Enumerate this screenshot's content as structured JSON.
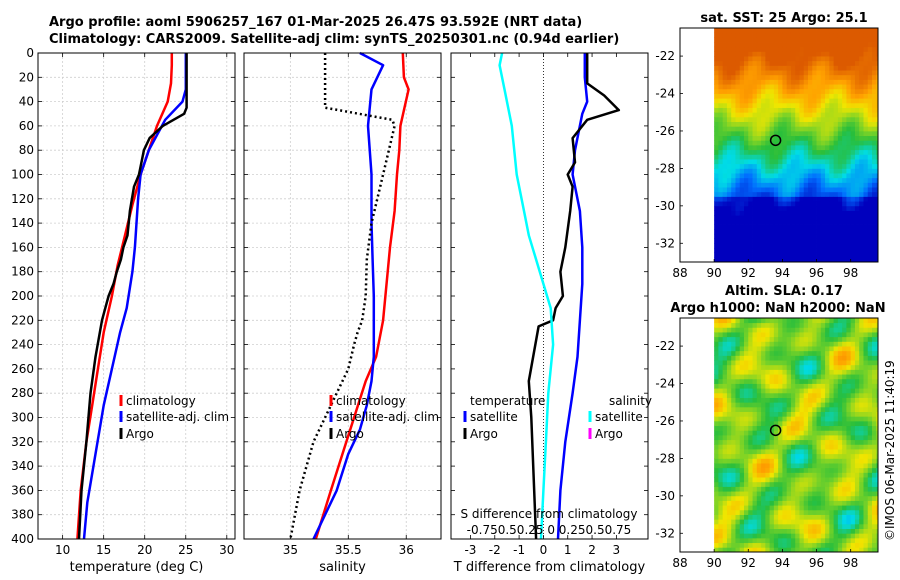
{
  "header": {
    "line1": "Argo profile: aoml 5906257_167 01-Mar-2025 26.47S 93.592E (NRT data)",
    "line2": "Climatology: CARS2009. Satellite-adj clim: synTS_20250301.nc (0.94d earlier)"
  },
  "watermark": "©IMOS 06-Mar-2025 11:40:19",
  "colors": {
    "climatology": "#ff0000",
    "satellite": "#0000ff",
    "argo": "#000000",
    "sat_salinity": "#00ffff",
    "argo_salinity": "#ff00ff"
  },
  "chart_data": [
    {
      "id": "temperature",
      "type": "line",
      "xlabel": "temperature (deg C)",
      "ylabel": "",
      "xlim": [
        7,
        31
      ],
      "ylim": [
        400,
        0
      ],
      "xticks": [
        10,
        15,
        20,
        25,
        30
      ],
      "yticks": [
        0,
        20,
        40,
        60,
        80,
        100,
        120,
        140,
        160,
        180,
        200,
        220,
        240,
        260,
        280,
        300,
        320,
        340,
        360,
        380,
        400
      ],
      "grid": true,
      "legend": [
        "climatology",
        "satellite-adj. clim",
        "Argo"
      ],
      "series": [
        {
          "name": "climatology",
          "color": "#ff0000",
          "x": [
            23.3,
            23.3,
            23.2,
            22.8,
            21.5,
            20.5,
            19.5,
            18.5,
            17.6,
            16.7,
            16,
            15,
            14.3,
            13.6,
            12.9,
            12.2,
            11.8
          ],
          "y": [
            0,
            10,
            25,
            40,
            60,
            80,
            100,
            125,
            150,
            175,
            200,
            230,
            260,
            290,
            320,
            360,
            400
          ]
        },
        {
          "name": "satellite-adj. clim",
          "color": "#0000ff",
          "x": [
            25,
            25,
            25,
            24.6,
            22.5,
            20.5,
            19.5,
            19.2,
            19,
            18.8,
            18.5,
            17.8,
            17,
            16,
            15,
            14,
            13,
            12.6
          ],
          "y": [
            0,
            10,
            30,
            40,
            55,
            80,
            100,
            120,
            140,
            160,
            180,
            210,
            230,
            260,
            290,
            330,
            370,
            400
          ]
        },
        {
          "name": "Argo",
          "color": "#000000",
          "x": [
            25.1,
            25.1,
            25.1,
            25.1,
            24.8,
            22.2,
            20.6,
            19.9,
            19.3,
            18.7,
            18.2,
            17.9,
            17.4,
            17.1,
            16.6,
            16.2,
            15.6,
            15.2,
            14.8,
            14,
            13.4,
            12.9,
            12.3,
            12
          ],
          "y": [
            0,
            10,
            30,
            45,
            50,
            60,
            70,
            80,
            100,
            110,
            130,
            150,
            160,
            170,
            180,
            190,
            200,
            210,
            220,
            250,
            280,
            320,
            360,
            400
          ]
        }
      ]
    },
    {
      "id": "salinity",
      "type": "line",
      "xlabel": "salinity",
      "ylabel": "",
      "xlim": [
        34.6,
        36.3
      ],
      "ylim": [
        400,
        0
      ],
      "xticks": [
        35,
        35.5,
        36
      ],
      "yticks": [
        0,
        20,
        40,
        60,
        80,
        100,
        120,
        140,
        160,
        180,
        200,
        220,
        240,
        260,
        280,
        300,
        320,
        340,
        360,
        380,
        400
      ],
      "grid": true,
      "legend": [
        "climatology",
        "satellite-adj. clim",
        "Argo"
      ],
      "series": [
        {
          "name": "climatology",
          "color": "#ff0000",
          "x": [
            35.97,
            35.98,
            36.02,
            35.95,
            35.94,
            35.92,
            35.9,
            35.86,
            35.84,
            35.82,
            35.8,
            35.74,
            35.65,
            35.55,
            35.45,
            35.35,
            35.22
          ],
          "y": [
            0,
            20,
            30,
            60,
            80,
            100,
            130,
            160,
            180,
            200,
            220,
            250,
            270,
            300,
            330,
            360,
            400
          ]
        },
        {
          "name": "satellite-adj. clim",
          "color": "#0000ff",
          "x": [
            35.6,
            35.8,
            35.7,
            35.67,
            35.7,
            35.7,
            35.71,
            35.72,
            35.72,
            35.72,
            35.7,
            35.66,
            35.6,
            35.5,
            35.4,
            35.3,
            35.2
          ],
          "y": [
            0,
            10,
            30,
            60,
            100,
            140,
            170,
            200,
            220,
            250,
            270,
            290,
            310,
            330,
            360,
            380,
            400
          ]
        },
        {
          "name": "Argo",
          "color": "#000000",
          "dash": true,
          "x": [
            35.3,
            35.3,
            35.3,
            35.3,
            35.3,
            35.88,
            35.9,
            35.8,
            35.7,
            35.66,
            35.65,
            35.62,
            35.58,
            35.55,
            35.5,
            35.3,
            35.2,
            35.08,
            35
          ],
          "y": [
            0,
            10,
            30,
            40,
            45,
            55,
            60,
            100,
            140,
            170,
            200,
            220,
            230,
            240,
            260,
            300,
            320,
            360,
            400
          ]
        }
      ]
    },
    {
      "id": "difference",
      "type": "line",
      "xlabel": "T difference from climatology",
      "top_xlabel": "S difference from climatology",
      "top_ticks": "-0.750.50.25 0 0.250.50.75",
      "ylabel": "",
      "xlim": [
        -3.8,
        4.3
      ],
      "ylim": [
        400,
        0
      ],
      "xticks": [
        -3,
        -2,
        -1,
        0,
        1,
        2,
        3
      ],
      "yticks": [
        0,
        20,
        40,
        60,
        80,
        100,
        120,
        140,
        160,
        180,
        200,
        220,
        240,
        260,
        280,
        300,
        320,
        340,
        360,
        380,
        400
      ],
      "grid": false,
      "legend_temperature": {
        "title": "temperature",
        "items": [
          "satellite",
          "Argo"
        ]
      },
      "legend_salinity": {
        "title": "salinity",
        "items": [
          "satellite",
          "Argo"
        ]
      },
      "series": [
        {
          "name": "T satellite",
          "color": "#0000ff",
          "x": [
            1.7,
            1.7,
            1.8,
            1.6,
            1.3,
            1.2,
            1.5,
            1.6,
            1.6,
            1.5,
            1.4,
            1.2,
            0.9,
            0.7,
            0.6
          ],
          "y": [
            0,
            20,
            40,
            50,
            80,
            100,
            130,
            160,
            190,
            220,
            250,
            280,
            320,
            360,
            400
          ]
        },
        {
          "name": "T Argo",
          "color": "#000000",
          "x": [
            1.8,
            1.8,
            1.8,
            2.5,
            3.1,
            1.8,
            1.2,
            1.3,
            1,
            1.2,
            1.1,
            0.9,
            0.7,
            0.8,
            0.5,
            0.4,
            -0.2,
            -0.6,
            -0.5,
            -0.4,
            -0.3
          ],
          "y": [
            0,
            10,
            25,
            35,
            47,
            55,
            70,
            90,
            100,
            110,
            130,
            160,
            180,
            200,
            210,
            220,
            225,
            270,
            300,
            350,
            400
          ]
        },
        {
          "name": "S satellite",
          "color": "#00ffff",
          "x": [
            -1.7,
            -1.8,
            -1.6,
            -1.3,
            -1.1,
            -0.8,
            -0.6,
            -0.3,
            0,
            0.3,
            0.4,
            0.2,
            0.1,
            0,
            -0.1
          ],
          "y": [
            0,
            10,
            30,
            60,
            100,
            130,
            150,
            170,
            190,
            210,
            240,
            280,
            320,
            360,
            400
          ]
        }
      ]
    }
  ],
  "sst_panel": {
    "title": "sat. SST: 25 Argo: 25.1",
    "xlim": [
      88,
      99.6
    ],
    "ylim": [
      -33,
      -20.5
    ],
    "xticks": [
      88,
      90,
      92,
      94,
      96,
      98
    ],
    "yticks": [
      -22,
      -24,
      -26,
      -28,
      -30,
      -32
    ],
    "float_lon": 93.6,
    "float_lat": -26.5
  },
  "sla_panel": {
    "title_line1": "Altim. SLA: 0.17",
    "title_line2": "Argo h1000: NaN h2000: NaN",
    "xlim": [
      88,
      99.6
    ],
    "ylim": [
      -33,
      -20.5
    ],
    "xticks": [
      88,
      90,
      92,
      94,
      96,
      98
    ],
    "yticks": [
      -22,
      -24,
      -26,
      -28,
      -30,
      -32
    ],
    "float_lon": 93.6,
    "float_lat": -26.5
  }
}
